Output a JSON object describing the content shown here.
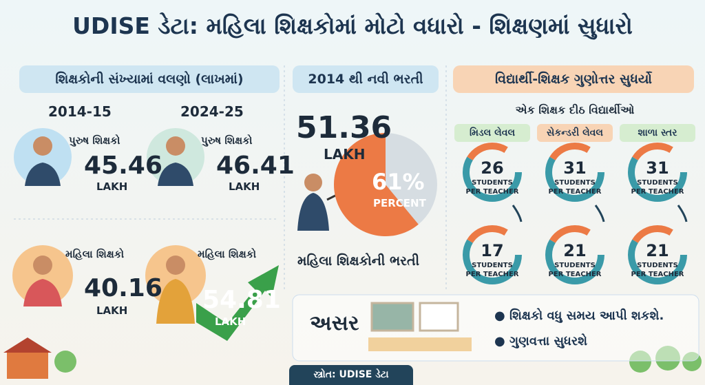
{
  "title": "UDISE ડેટા: મહિલા શિક્ષકોમાં મોટો વધારો - શિક્ષણમાં સુધારો",
  "trend": {
    "heading": "શિક્ષકોની સંખ્યામાં વલણો (લાખમાં)",
    "years": [
      "2014-15",
      "2024-25"
    ],
    "male_label": "પુરુષ શિક્ષકો",
    "female_label": "મહિલા શિક્ષકો",
    "unit": "LAKH",
    "male": [
      45.46,
      46.41
    ],
    "female": [
      40.16,
      54.81
    ]
  },
  "recruitment": {
    "heading": "2014 થી નવી ભરતી",
    "total": 51.36,
    "unit": "LAKH",
    "share": {
      "value": 61,
      "label": "61%"
    },
    "share_unit": "PERCENT",
    "caption": "મહિલા શિક્ષકોની ભરતી"
  },
  "ratio": {
    "heading": "વિદ્યાર્થી-શિક્ષક ગુણોત્તર સુધર્યો",
    "subheading": "એક શિક્ષક દીઠ વિદ્યાર્થીઓ",
    "line1": "STUDENTS",
    "line2": "PER TEACHER",
    "levels": [
      {
        "name": "મિડલ લેવલ",
        "before": 26,
        "after": 17
      },
      {
        "name": "સેકન્ડરી લેવલ",
        "before": 31,
        "after": 21
      },
      {
        "name": "શાળા સ્તર",
        "before": 31,
        "after": 21
      }
    ]
  },
  "impact": {
    "label": "અસર",
    "points": [
      "શિક્ષકો વધુ સમય આપી શકશે.",
      "ગુણવત્તા સુધરશે"
    ]
  },
  "footer": "સ્ત્રોત: UDISE ડેટા"
}
